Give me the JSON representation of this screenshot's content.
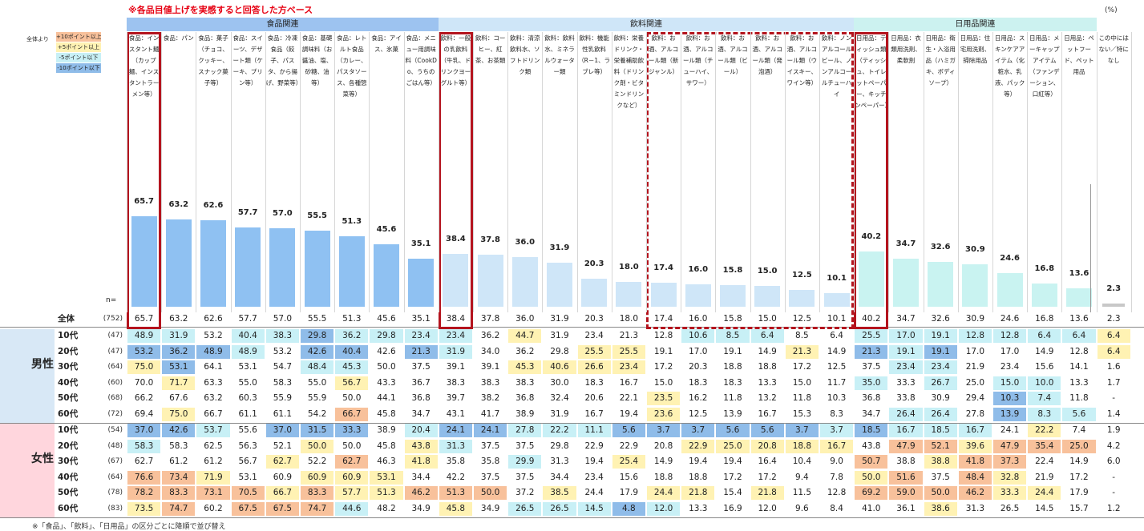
{
  "header": {
    "note": "※各品目値上げを実感すると回答した方ベース",
    "pct_unit": "(%)",
    "n_label": "n=",
    "footnote": "※「食品」、「飲料」、「日用品」の区分ごとに降順で並び替え"
  },
  "legend": {
    "label": "全体より",
    "items": [
      {
        "label": "+10ポイント以上",
        "color": "#f8c19b"
      },
      {
        "label": "+5ポイント以上",
        "color": "#fff2b3"
      },
      {
        "label": "-5ポイント以下",
        "color": "#c8f0f6"
      },
      {
        "label": "-10ポイント以下",
        "color": "#8fbce9"
      }
    ]
  },
  "groups": [
    {
      "label": "食品関連",
      "color": "#9dc3f0"
    },
    {
      "label": "飲料関連",
      "color": "#cfe6f8"
    },
    {
      "label": "日用品関連",
      "color": "#ccf2f0"
    }
  ],
  "columns": [
    "食品：インスタント麺（カップ麺、インスタントラーメン等）",
    "食品：パン",
    "食品：菓子（チョコ、クッキー、スナック菓子等）",
    "食品：スイーツ、デザート類（ケーキ、プリン等）",
    "食品：冷凍食品（餃子、パスタ、から揚げ、野菜等）",
    "食品：基礎調味料（お醤油、塩、砂糖、油等）",
    "食品：レトルト食品（カレー、パスタソース、各種惣菜等）",
    "食品：アイス、氷菓",
    "食品：メニュー用調味料（CookDo、うちのごはん等）",
    "飲料：一般の乳飲料（牛乳、ドリンクヨーグルト等）",
    "飲料：コーヒー、紅茶、お茶類",
    "飲料：清涼飲料水、ソフトドリンク類",
    "飲料：飲料水、ミネラルウォーター類",
    "飲料：機能性乳飲料（R－1、ラブレ等）",
    "飲料：栄養ドリンク・栄養補助飲料（ドリンク剤・ビタミンドリンクなど）",
    "飲料：お酒、アルコール類（新ジャンル）",
    "飲料：お酒、アルコール類（チューハイ、サワー）",
    "飲料：お酒、アルコール類（ビール）",
    "飲料：お酒、アルコール類（発泡酒）",
    "飲料：お酒、アルコール類（ウイスキー、ワイン等）",
    "飲料：ノンアルコールビール、ノンアルコールチューハイ",
    "日用品：ティッシュ類（ティッシュ、トイレットペーパー、キッチンペーパー）",
    "日用品：衣類用洗剤、柔軟剤",
    "日用品：衛生・入浴用品（ハミガキ、ボディソープ）",
    "日用品：住宅用洗剤、掃除用品",
    "日用品：スキンケアアイテム（化粧水、乳液、パック等）",
    "日用品：メーキャップアイテム（ファンデーション、口紅等）",
    "日用品：ペットフード、ペット用品",
    "この中にはない／特になし"
  ],
  "chart_data": {
    "type": "bar",
    "title": "",
    "ylim": [
      0,
      100
    ],
    "total": {
      "label": "全体",
      "n": "(752)",
      "values": [
        "65.7",
        "63.2",
        "62.6",
        "57.7",
        "57.0",
        "55.5",
        "51.3",
        "45.6",
        "35.1",
        "38.4",
        "37.8",
        "36.0",
        "31.9",
        "20.3",
        "18.0",
        "17.4",
        "16.0",
        "15.8",
        "15.0",
        "12.5",
        "10.1",
        "40.2",
        "34.7",
        "32.6",
        "30.9",
        "24.6",
        "16.8",
        "13.6",
        "2.3"
      ]
    },
    "segments": [
      {
        "group": "男性",
        "rows": [
          {
            "label": "10代",
            "n": "(47)",
            "values": [
              "48.9",
              "31.9",
              "53.2",
              "40.4",
              "38.3",
              "29.8",
              "36.2",
              "29.8",
              "23.4",
              "23.4",
              "36.2",
              "44.7",
              "31.9",
              "23.4",
              "21.3",
              "12.8",
              "10.6",
              "8.5",
              "6.4",
              "8.5",
              "6.4",
              "25.5",
              "17.0",
              "19.1",
              "12.8",
              "12.8",
              "6.4",
              "6.4",
              "6.4"
            ],
            "hl": [
              "c",
              "c",
              "",
              "c",
              "c",
              "b",
              "c",
              "c",
              "c",
              "c",
              "",
              "y",
              "",
              "",
              "",
              "",
              "c",
              "c",
              "c",
              "",
              "",
              "c",
              "c",
              "c",
              "c",
              "c",
              "c",
              "c",
              "y"
            ]
          },
          {
            "label": "20代",
            "n": "(47)",
            "values": [
              "53.2",
              "36.2",
              "48.9",
              "48.9",
              "53.2",
              "42.6",
              "40.4",
              "42.6",
              "21.3",
              "31.9",
              "34.0",
              "36.2",
              "29.8",
              "25.5",
              "25.5",
              "19.1",
              "17.0",
              "19.1",
              "14.9",
              "21.3",
              "14.9",
              "21.3",
              "19.1",
              "19.1",
              "17.0",
              "17.0",
              "14.9",
              "12.8",
              "6.4"
            ],
            "hl": [
              "b",
              "b",
              "b",
              "c",
              "",
              "b",
              "b",
              "",
              "b",
              "c",
              "",
              "",
              "",
              "y",
              "y",
              "",
              "",
              "",
              "",
              "y",
              "",
              "b",
              "c",
              "b",
              "",
              "",
              "",
              "",
              "y"
            ]
          },
          {
            "label": "30代",
            "n": "(64)",
            "values": [
              "75.0",
              "53.1",
              "64.1",
              "53.1",
              "54.7",
              "48.4",
              "45.3",
              "50.0",
              "37.5",
              "39.1",
              "39.1",
              "45.3",
              "40.6",
              "26.6",
              "23.4",
              "17.2",
              "20.3",
              "18.8",
              "18.8",
              "17.2",
              "12.5",
              "37.5",
              "23.4",
              "23.4",
              "21.9",
              "23.4",
              "15.6",
              "14.1",
              "1.6"
            ],
            "hl": [
              "y",
              "b",
              "",
              "",
              "",
              "c",
              "c",
              "",
              "",
              "",
              "",
              "y",
              "y",
              "y",
              "y",
              "",
              "",
              "",
              "",
              "",
              "",
              "",
              "c",
              "c",
              "",
              "",
              "",
              "",
              ""
            ]
          },
          {
            "label": "40代",
            "n": "(60)",
            "values": [
              "70.0",
              "71.7",
              "63.3",
              "55.0",
              "58.3",
              "55.0",
              "56.7",
              "43.3",
              "36.7",
              "38.3",
              "38.3",
              "38.3",
              "30.0",
              "18.3",
              "16.7",
              "15.0",
              "18.3",
              "18.3",
              "13.3",
              "15.0",
              "11.7",
              "35.0",
              "33.3",
              "26.7",
              "25.0",
              "15.0",
              "10.0",
              "13.3",
              "1.7"
            ],
            "hl": [
              "",
              "y",
              "",
              "",
              "",
              "",
              "y",
              "",
              "",
              "",
              "",
              "",
              "",
              "",
              "",
              "",
              "",
              "",
              "",
              "",
              "",
              "c",
              "",
              "c",
              "",
              "c",
              "c",
              "",
              ""
            ]
          },
          {
            "label": "50代",
            "n": "(68)",
            "values": [
              "66.2",
              "67.6",
              "63.2",
              "60.3",
              "55.9",
              "55.9",
              "50.0",
              "44.1",
              "36.8",
              "39.7",
              "38.2",
              "36.8",
              "32.4",
              "20.6",
              "22.1",
              "23.5",
              "16.2",
              "11.8",
              "13.2",
              "11.8",
              "10.3",
              "36.8",
              "33.8",
              "30.9",
              "29.4",
              "10.3",
              "7.4",
              "11.8",
              "-"
            ],
            "hl": [
              "",
              "",
              "",
              "",
              "",
              "",
              "",
              "",
              "",
              "",
              "",
              "",
              "",
              "",
              "",
              "y",
              "",
              "",
              "",
              "",
              "",
              "",
              "",
              "",
              "",
              "b",
              "c",
              "",
              ""
            ]
          },
          {
            "label": "60代",
            "n": "(72)",
            "values": [
              "69.4",
              "75.0",
              "66.7",
              "61.1",
              "61.1",
              "54.2",
              "66.7",
              "45.8",
              "34.7",
              "43.1",
              "41.7",
              "38.9",
              "31.9",
              "16.7",
              "19.4",
              "23.6",
              "12.5",
              "13.9",
              "16.7",
              "15.3",
              "8.3",
              "34.7",
              "26.4",
              "26.4",
              "27.8",
              "13.9",
              "8.3",
              "5.6",
              "1.4"
            ],
            "hl": [
              "",
              "y",
              "",
              "",
              "",
              "",
              "o",
              "",
              "",
              "",
              "",
              "",
              "",
              "",
              "",
              "y",
              "",
              "",
              "",
              "",
              "",
              "",
              "c",
              "c",
              "",
              "b",
              "c",
              "c",
              ""
            ]
          }
        ]
      },
      {
        "group": "女性",
        "rows": [
          {
            "label": "10代",
            "n": "(54)",
            "values": [
              "37.0",
              "42.6",
              "53.7",
              "55.6",
              "37.0",
              "31.5",
              "33.3",
              "38.9",
              "20.4",
              "24.1",
              "24.1",
              "27.8",
              "22.2",
              "11.1",
              "5.6",
              "3.7",
              "3.7",
              "5.6",
              "5.6",
              "3.7",
              "3.7",
              "18.5",
              "16.7",
              "18.5",
              "16.7",
              "24.1",
              "22.2",
              "7.4",
              "1.9"
            ],
            "hl": [
              "b",
              "b",
              "c",
              "",
              "b",
              "b",
              "b",
              "",
              "c",
              "b",
              "b",
              "c",
              "c",
              "c",
              "b",
              "b",
              "b",
              "b",
              "b",
              "b",
              "c",
              "b",
              "c",
              "c",
              "c",
              "",
              "y",
              "",
              ""
            ]
          },
          {
            "label": "20代",
            "n": "(48)",
            "values": [
              "58.3",
              "58.3",
              "62.5",
              "56.3",
              "52.1",
              "50.0",
              "50.0",
              "45.8",
              "43.8",
              "31.3",
              "37.5",
              "37.5",
              "29.8",
              "22.9",
              "22.9",
              "20.8",
              "22.9",
              "25.0",
              "20.8",
              "18.8",
              "16.7",
              "43.8",
              "47.9",
              "52.1",
              "39.6",
              "47.9",
              "35.4",
              "25.0",
              "4.2"
            ],
            "hl": [
              "c",
              "",
              "",
              "",
              "",
              "y",
              "",
              "",
              "y",
              "c",
              "",
              "",
              "",
              "",
              "",
              "",
              "y",
              "y",
              "y",
              "y",
              "y",
              "",
              "o",
              "o",
              "y",
              "o",
              "o",
              "o",
              ""
            ]
          },
          {
            "label": "30代",
            "n": "(67)",
            "values": [
              "62.7",
              "61.2",
              "61.2",
              "56.7",
              "62.7",
              "52.2",
              "62.7",
              "46.3",
              "41.8",
              "35.8",
              "35.8",
              "29.9",
              "31.3",
              "19.4",
              "25.4",
              "14.9",
              "19.4",
              "19.4",
              "16.4",
              "10.4",
              "9.0",
              "50.7",
              "38.8",
              "38.8",
              "41.8",
              "37.3",
              "22.4",
              "14.9",
              "6.0"
            ],
            "hl": [
              "",
              "",
              "",
              "",
              "y",
              "",
              "o",
              "",
              "y",
              "",
              "",
              "c",
              "",
              "",
              "y",
              "",
              "",
              "",
              "",
              "",
              "",
              "o",
              "",
              "y",
              "o",
              "o",
              "",
              "",
              ""
            ]
          },
          {
            "label": "40代",
            "n": "(64)",
            "values": [
              "76.6",
              "73.4",
              "71.9",
              "53.1",
              "60.9",
              "60.9",
              "60.9",
              "53.1",
              "34.4",
              "42.2",
              "37.5",
              "37.5",
              "34.4",
              "23.4",
              "15.6",
              "18.8",
              "18.8",
              "17.2",
              "17.2",
              "9.4",
              "7.8",
              "50.0",
              "51.6",
              "37.5",
              "48.4",
              "32.8",
              "21.9",
              "17.2",
              "-"
            ],
            "hl": [
              "o",
              "o",
              "y",
              "",
              "",
              "y",
              "y",
              "y",
              "",
              "",
              "",
              "",
              "",
              "",
              "",
              "",
              "",
              "",
              "",
              "",
              "",
              "y",
              "o",
              "",
              "o",
              "y",
              "",
              "",
              ""
            ]
          },
          {
            "label": "50代",
            "n": "(78)",
            "values": [
              "78.2",
              "83.3",
              "73.1",
              "70.5",
              "66.7",
              "83.3",
              "57.7",
              "51.3",
              "46.2",
              "51.3",
              "50.0",
              "37.2",
              "38.5",
              "24.4",
              "17.9",
              "24.4",
              "21.8",
              "15.4",
              "21.8",
              "11.5",
              "12.8",
              "69.2",
              "59.0",
              "50.0",
              "46.2",
              "33.3",
              "24.4",
              "17.9",
              "-"
            ],
            "hl": [
              "o",
              "o",
              "o",
              "o",
              "y",
              "o",
              "y",
              "y",
              "o",
              "o",
              "o",
              "",
              "y",
              "",
              "",
              "y",
              "y",
              "",
              "y",
              "",
              "",
              "o",
              "o",
              "o",
              "o",
              "y",
              "y",
              "",
              ""
            ]
          },
          {
            "label": "60代",
            "n": "(83)",
            "values": [
              "73.5",
              "74.7",
              "60.2",
              "67.5",
              "67.5",
              "74.7",
              "44.6",
              "48.2",
              "34.9",
              "45.8",
              "34.9",
              "26.5",
              "26.5",
              "14.5",
              "4.8",
              "12.0",
              "13.3",
              "16.9",
              "12.0",
              "9.6",
              "8.4",
              "41.0",
              "36.1",
              "38.6",
              "31.3",
              "26.5",
              "14.5",
              "15.7",
              "1.2"
            ],
            "hl": [
              "y",
              "o",
              "",
              "o",
              "o",
              "o",
              "c",
              "",
              "",
              "y",
              "",
              "c",
              "c",
              "c",
              "b",
              "c",
              "",
              "",
              "",
              "",
              "",
              "",
              "",
              "y",
              "",
              "",
              "",
              "",
              ""
            ]
          }
        ]
      }
    ]
  }
}
